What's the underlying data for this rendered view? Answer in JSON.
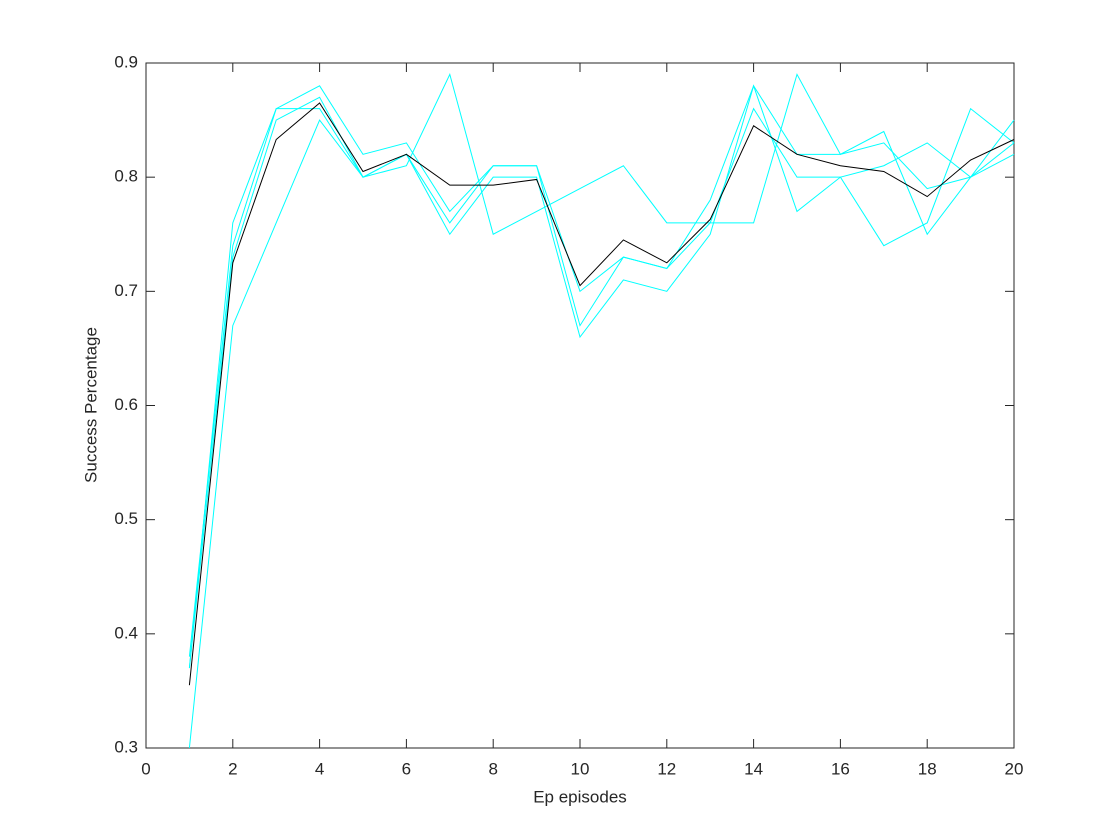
{
  "chart_data": {
    "type": "line",
    "x": [
      1,
      2,
      3,
      4,
      5,
      6,
      7,
      8,
      9,
      10,
      11,
      12,
      13,
      14,
      15,
      16,
      17,
      18,
      19,
      20
    ],
    "series": [
      {
        "color": "#00ffff",
        "values": [
          0.3,
          0.67,
          0.76,
          0.85,
          0.8,
          0.81,
          0.89,
          0.75,
          0.77,
          0.79,
          0.81,
          0.76,
          0.76,
          0.76,
          0.89,
          0.82,
          0.84,
          0.75,
          0.8,
          0.85
        ]
      },
      {
        "color": "#00ffff",
        "values": [
          0.37,
          0.73,
          0.85,
          0.87,
          0.8,
          0.82,
          0.75,
          0.8,
          0.8,
          0.66,
          0.71,
          0.7,
          0.75,
          0.88,
          0.77,
          0.8,
          0.81,
          0.83,
          0.8,
          0.82
        ]
      },
      {
        "color": "#00ffff",
        "values": [
          0.38,
          0.74,
          0.86,
          0.88,
          0.82,
          0.83,
          0.77,
          0.81,
          0.81,
          0.67,
          0.73,
          0.72,
          0.76,
          0.86,
          0.8,
          0.8,
          0.74,
          0.76,
          0.86,
          0.83
        ]
      },
      {
        "color": "#00ffff",
        "values": [
          0.37,
          0.76,
          0.86,
          0.86,
          0.8,
          0.82,
          0.76,
          0.81,
          0.81,
          0.7,
          0.73,
          0.72,
          0.78,
          0.88,
          0.82,
          0.82,
          0.83,
          0.79,
          0.8,
          0.83
        ]
      },
      {
        "color": "#000000",
        "values": [
          0.355,
          0.725,
          0.833,
          0.865,
          0.805,
          0.82,
          0.793,
          0.793,
          0.798,
          0.705,
          0.745,
          0.725,
          0.763,
          0.845,
          0.82,
          0.81,
          0.805,
          0.783,
          0.815,
          0.833
        ]
      }
    ],
    "xlabel": "Ep episodes",
    "ylabel": "Success Percentage",
    "xlim": [
      0,
      20
    ],
    "xticks": [
      0,
      2,
      4,
      6,
      8,
      10,
      12,
      14,
      16,
      18,
      20
    ],
    "ylim": [
      0.3,
      0.9
    ],
    "yticks": [
      0.3,
      0.4,
      0.5,
      0.6,
      0.7,
      0.8,
      0.9
    ],
    "grid": false
  }
}
